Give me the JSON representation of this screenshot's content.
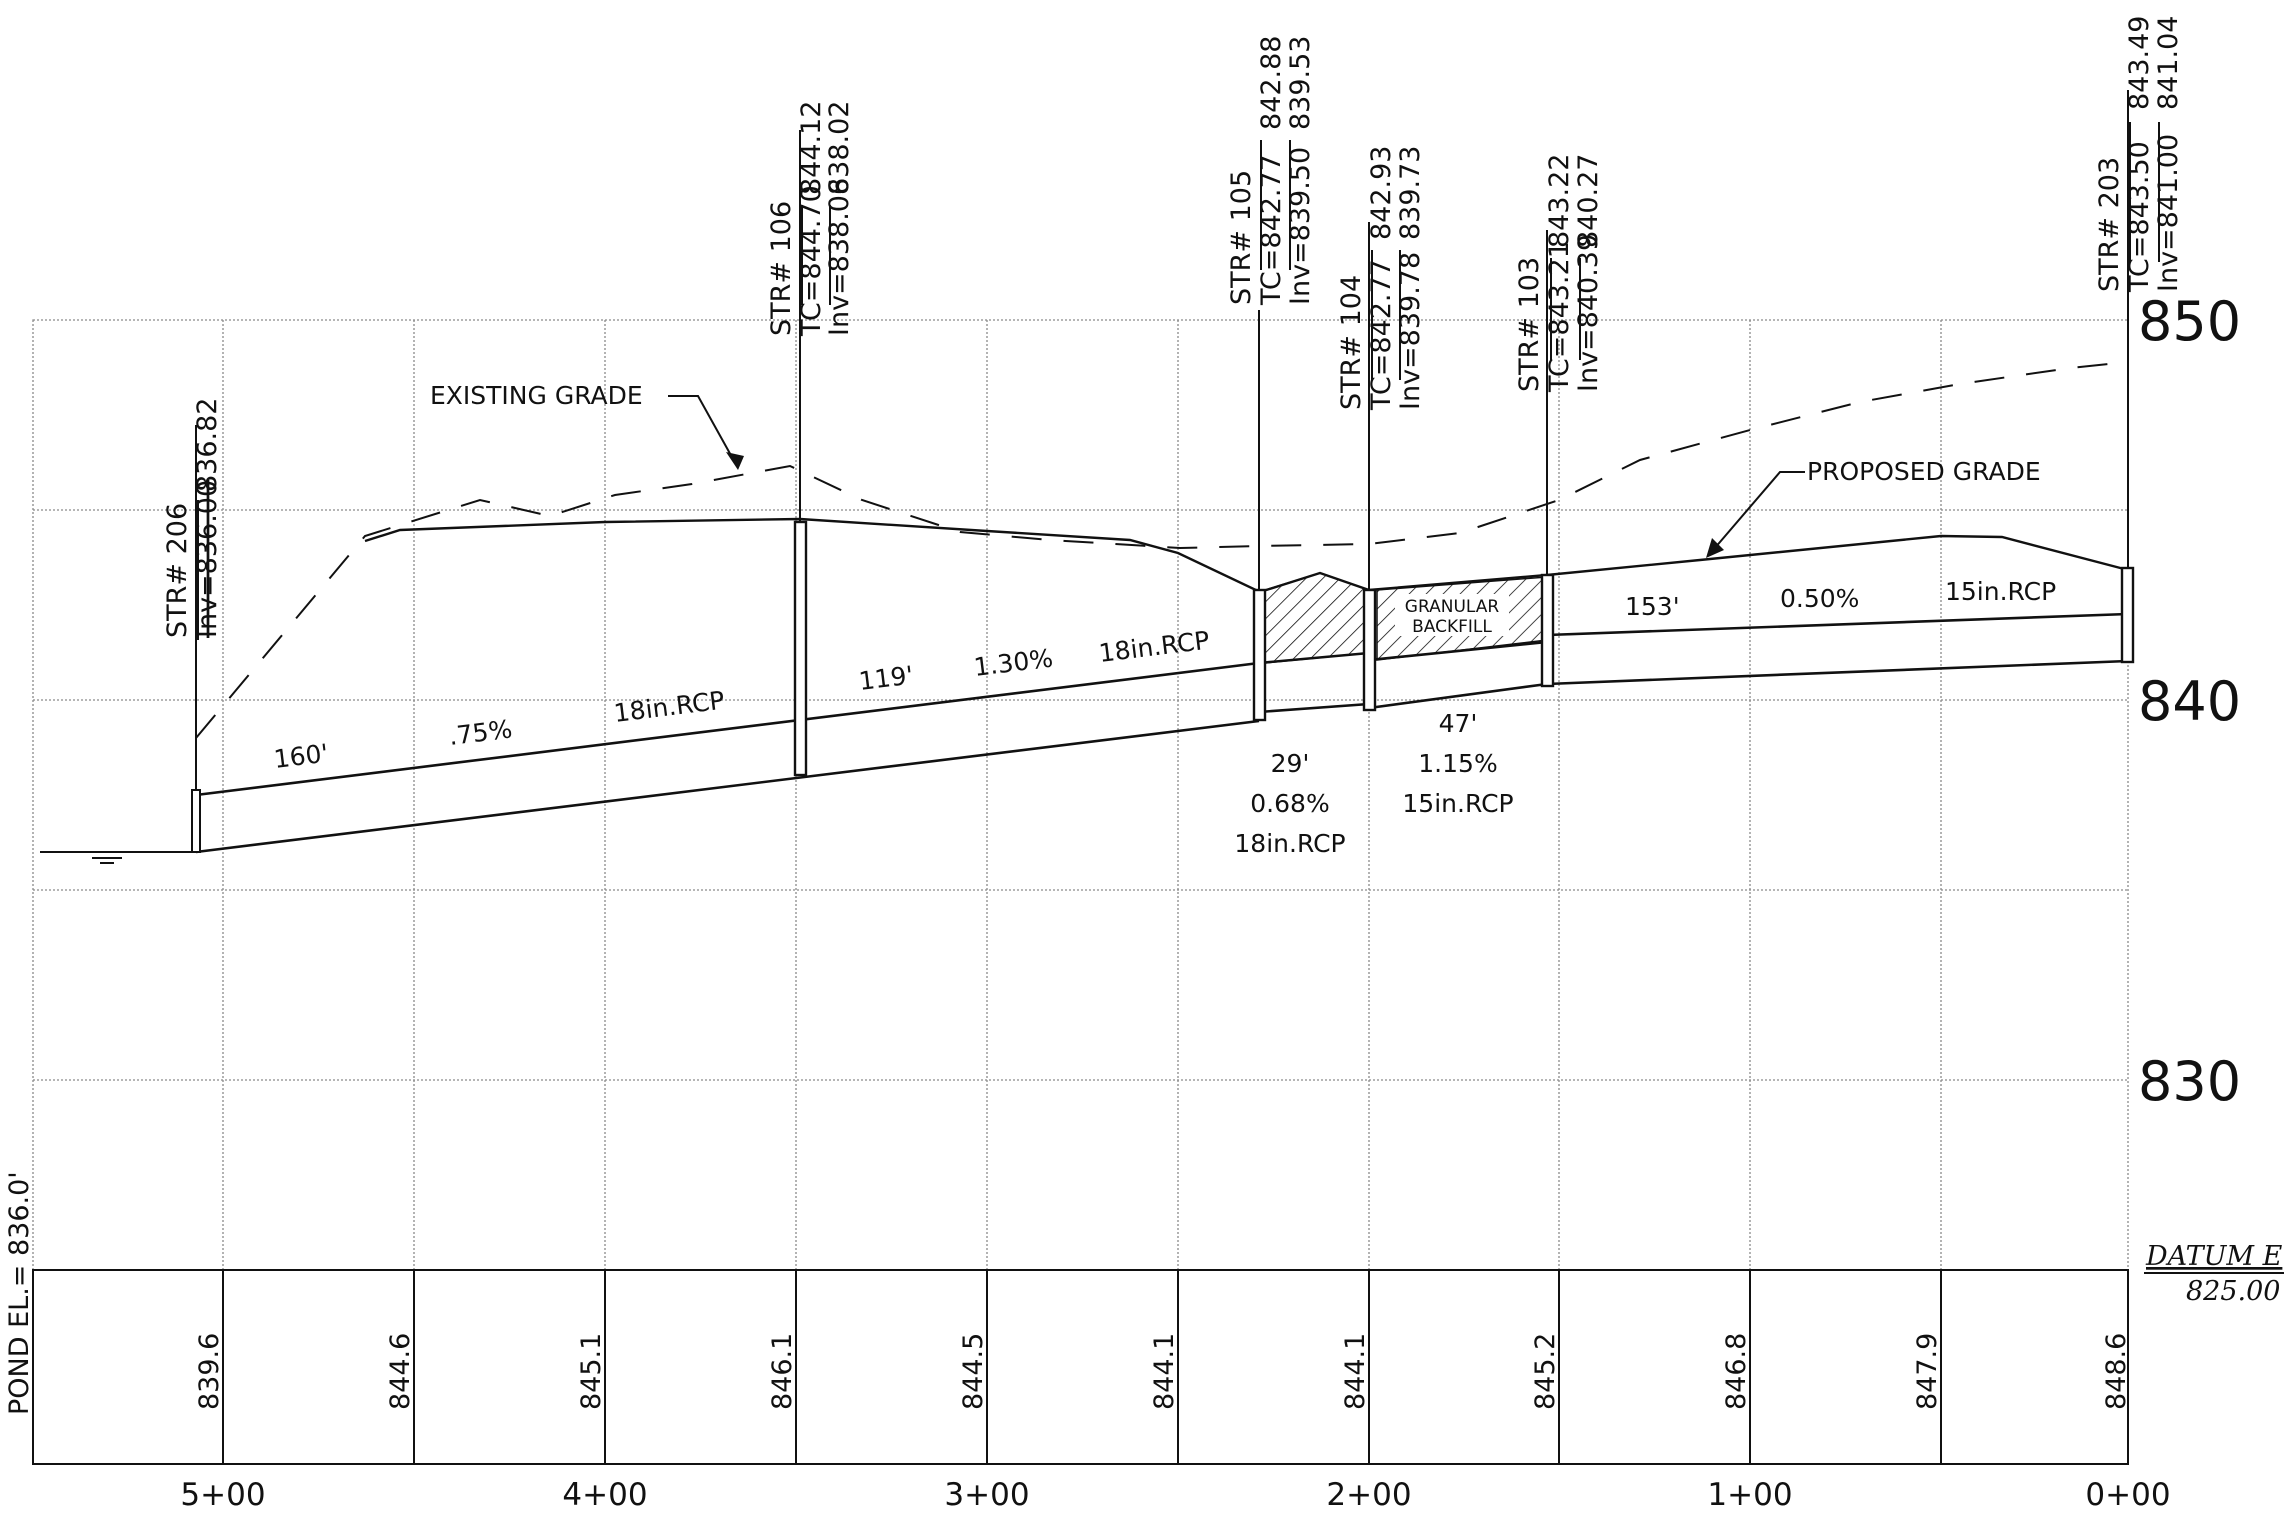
{
  "elevation_labels": [
    "850",
    "840",
    "830"
  ],
  "stations": [
    "5+00",
    "4+00",
    "3+00",
    "2+00",
    "1+00",
    "0+00"
  ],
  "ground_elevations": [
    "839.6",
    "844.6",
    "845.1",
    "846.1",
    "844.5",
    "844.1",
    "844.1",
    "845.2",
    "846.8",
    "847.9",
    "848.6"
  ],
  "pond": "POND EL.= 836.0'",
  "datum": {
    "label": "DATUM E",
    "value": "825.00"
  },
  "callouts": {
    "existing": "EXISTING GRADE",
    "proposed": "PROPOSED GRADE"
  },
  "granular": {
    "line1": "GRANULAR",
    "line2": "BACKFILL"
  },
  "structures": [
    {
      "name": "STR# 206",
      "tc_old": "",
      "tc_new": "",
      "inv_old": "Inv=836.00",
      "inv_new": "836.82"
    },
    {
      "name": "STR# 106",
      "tc_old": "TC=844.70",
      "tc_new": "844.12",
      "inv_old": "Inv=838.06",
      "inv_new": "838.02"
    },
    {
      "name": "STR# 105",
      "tc_old": "TC=842.77",
      "tc_new": "842.88",
      "inv_old": "Inv=839.50",
      "inv_new": "839.53"
    },
    {
      "name": "STR# 104",
      "tc_old": "TC=842.77",
      "tc_new": "842.93",
      "inv_old": "Inv=839.78",
      "inv_new": "839.73"
    },
    {
      "name": "STR# 103",
      "tc_old": "TC=843.21",
      "tc_new": "843.22",
      "inv_old": "Inv=840.39",
      "inv_new": "840.27"
    },
    {
      "name": "STR# 203",
      "tc_old": "TC=843.50",
      "tc_new": "843.49",
      "inv_old": "Inv=841.00",
      "inv_new": "841.04"
    }
  ],
  "pipe_labels": {
    "s1_length": "160'",
    "s1_slope": ".75%",
    "s1_size": "18in.RCP",
    "s2_length": "119'",
    "s2_slope": "1.30%",
    "s2_size": "18in.RCP",
    "s3_length": "29'",
    "s3_slope": "0.68%",
    "s3_size": "18in.RCP",
    "s4_length": "47'",
    "s4_slope": "1.15%",
    "s4_size": "15in.RCP",
    "s5_length": "153'",
    "s5_slope": "0.50%",
    "s5_size": "15in.RCP"
  }
}
